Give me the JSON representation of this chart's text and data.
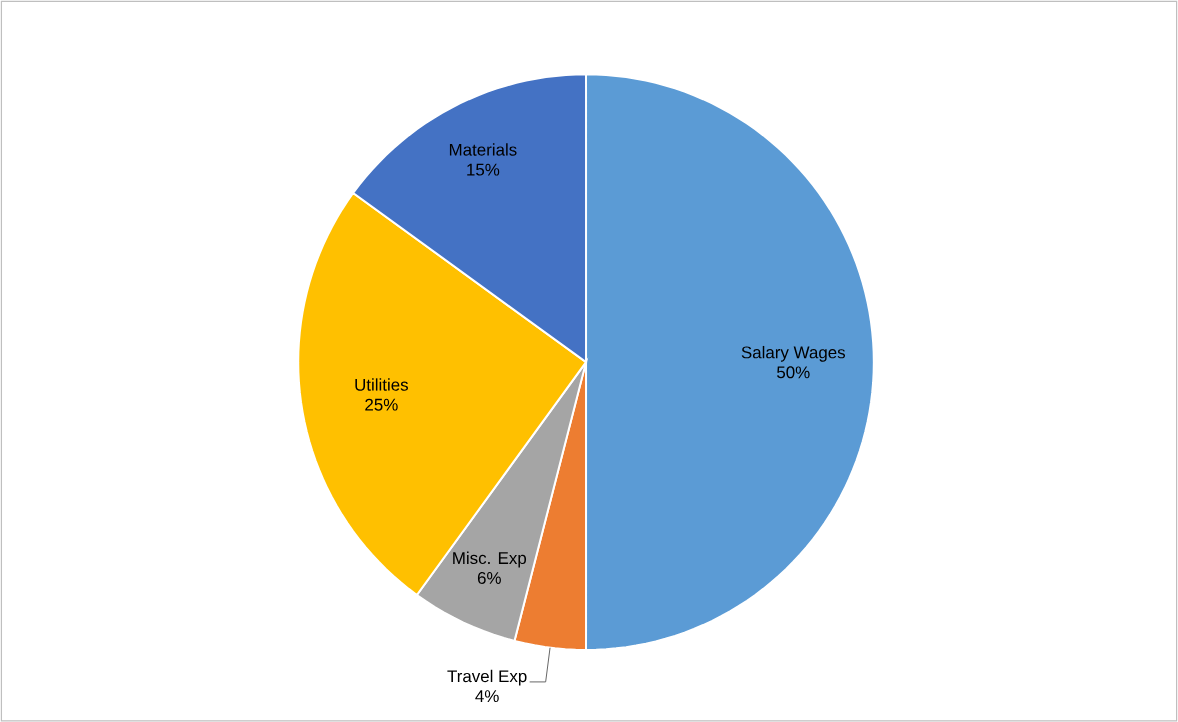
{
  "chart_data": {
    "type": "pie",
    "categories": [
      "Salary Wages",
      "Travel Exp",
      "Misc. Exp",
      "Utilities",
      "Materials"
    ],
    "values": [
      50,
      4,
      6,
      25,
      15
    ],
    "value_labels": [
      "50%",
      "4%",
      "6%",
      "25%",
      "15%"
    ],
    "colors": [
      "#5b9bd5",
      "#ed7d31",
      "#a5a5a5",
      "#ffc000",
      "#4472c4"
    ],
    "legend": false
  }
}
